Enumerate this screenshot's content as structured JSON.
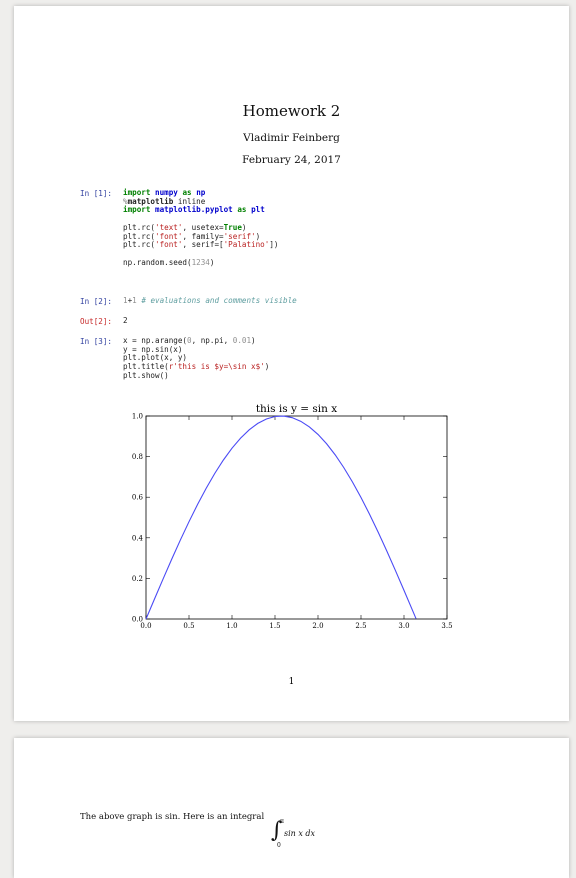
{
  "document": {
    "title": "Homework 2",
    "author": "Vladimir Feinberg",
    "date": "February 24, 2017",
    "page_number": "1"
  },
  "cells": {
    "c1": {
      "prompt": "In [1]:"
    },
    "c2": {
      "prompt": "In [2]:",
      "out_prompt": "Out[2]:",
      "output": "2"
    },
    "c3": {
      "prompt": "In [3]:"
    }
  },
  "page2": {
    "text": "The above graph is sin. Here is an integral",
    "integral_upper": "π",
    "integral_lower": "0",
    "integral_body": "sin x dx"
  },
  "chart_data": {
    "type": "line",
    "title": "this is y = sin x",
    "xlabel": "",
    "ylabel": "",
    "xlim": [
      0.0,
      3.5
    ],
    "ylim": [
      0.0,
      1.0
    ],
    "xticks": [
      "0.0",
      "0.5",
      "1.0",
      "1.5",
      "2.0",
      "2.5",
      "3.0",
      "3.5"
    ],
    "yticks": [
      "0.0",
      "0.2",
      "0.4",
      "0.6",
      "0.8",
      "1.0"
    ],
    "series": [
      {
        "color": "#4b4bf5",
        "x": [
          0,
          0.1,
          0.2,
          0.3,
          0.4,
          0.5,
          0.6,
          0.7,
          0.8,
          0.9,
          1.0,
          1.1,
          1.2,
          1.3,
          1.4,
          1.5,
          1.6,
          1.7,
          1.8,
          1.9,
          2.0,
          2.1,
          2.2,
          2.3,
          2.4,
          2.5,
          2.6,
          2.7,
          2.8,
          2.9,
          3.0,
          3.1,
          3.14
        ],
        "y": [
          0,
          0.0998,
          0.1987,
          0.2955,
          0.3894,
          0.4794,
          0.5646,
          0.6442,
          0.7174,
          0.7833,
          0.8415,
          0.8912,
          0.932,
          0.9636,
          0.9854,
          0.9975,
          0.9996,
          0.9917,
          0.9738,
          0.9463,
          0.9093,
          0.8632,
          0.8085,
          0.7457,
          0.6755,
          0.5985,
          0.5155,
          0.4274,
          0.335,
          0.2392,
          0.1411,
          0.0416,
          0.0016
        ]
      }
    ]
  }
}
